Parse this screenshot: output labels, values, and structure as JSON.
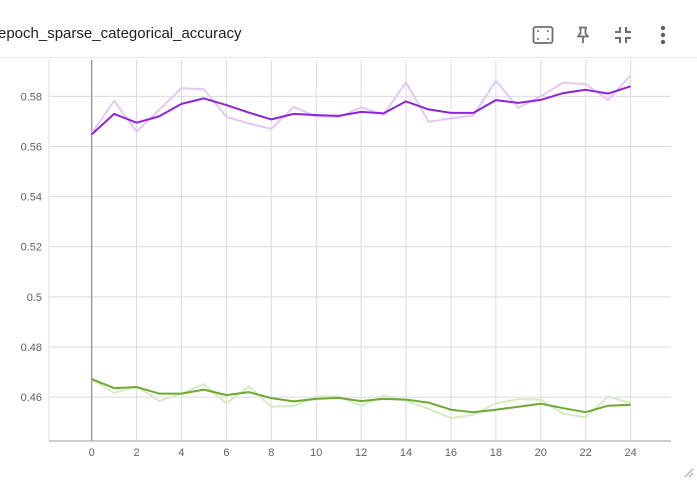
{
  "card": {
    "title": "epoch_sparse_categorical_accuracy"
  },
  "toolbar": {
    "buttons": [
      {
        "name": "fit-domain-icon"
      },
      {
        "name": "pin-icon"
      },
      {
        "name": "collapse-icon"
      },
      {
        "name": "more-vert-icon"
      }
    ]
  },
  "colors": {
    "train": "#8e24d8",
    "train_raw": "#e4c8f4",
    "validation": "#6fa833",
    "validation_raw": "#d6ecc0",
    "grid": "#dcdcdc",
    "axis": "#9e9e9e"
  },
  "chart_data": {
    "type": "line",
    "title": "",
    "xlabel": "",
    "ylabel": "",
    "x_ticks": [
      "0",
      "2",
      "4",
      "6",
      "8",
      "10",
      "12",
      "14",
      "16",
      "18",
      "20",
      "22",
      "24"
    ],
    "y_ticks": [
      "0.46",
      "0.48",
      "0.5",
      "0.52",
      "0.54",
      "0.56",
      "0.58"
    ],
    "xlim": [
      -1.9,
      25.8
    ],
    "ylim": [
      0.4425,
      0.5945
    ],
    "grid": true,
    "x": [
      0,
      1,
      2,
      3,
      4,
      5,
      6,
      7,
      8,
      9,
      10,
      11,
      12,
      13,
      14,
      15,
      16,
      17,
      18,
      19,
      20,
      21,
      22,
      23,
      24
    ],
    "series": [
      {
        "color_key": "train",
        "raw_color_key": "train_raw",
        "values": [
          0.5648,
          0.573,
          0.5695,
          0.572,
          0.577,
          0.5792,
          0.5765,
          0.5735,
          0.5708,
          0.573,
          0.5725,
          0.5722,
          0.5738,
          0.5732,
          0.578,
          0.5748,
          0.5734,
          0.5734,
          0.5785,
          0.5774,
          0.5786,
          0.5813,
          0.5826,
          0.5811,
          0.584
        ],
        "raw_values": [
          0.5652,
          0.5782,
          0.566,
          0.5745,
          0.5833,
          0.5828,
          0.5718,
          0.5692,
          0.567,
          0.5758,
          0.572,
          0.5718,
          0.5756,
          0.5728,
          0.5856,
          0.5698,
          0.5712,
          0.5724,
          0.5862,
          0.5754,
          0.58,
          0.5855,
          0.5849,
          0.5785,
          0.5884
        ]
      },
      {
        "color_key": "validation",
        "raw_color_key": "validation_raw",
        "values": [
          0.4672,
          0.4636,
          0.464,
          0.4614,
          0.4614,
          0.463,
          0.4608,
          0.462,
          0.4596,
          0.4583,
          0.4593,
          0.4597,
          0.4584,
          0.4593,
          0.459,
          0.4578,
          0.455,
          0.454,
          0.455,
          0.4562,
          0.4574,
          0.4556,
          0.454,
          0.4566,
          0.457
        ],
        "raw_values": [
          0.4672,
          0.4616,
          0.4644,
          0.4585,
          0.4614,
          0.4652,
          0.4576,
          0.4643,
          0.4562,
          0.4565,
          0.4603,
          0.4603,
          0.4566,
          0.4606,
          0.4585,
          0.4554,
          0.4516,
          0.453,
          0.4575,
          0.4592,
          0.459,
          0.4534,
          0.452,
          0.4602,
          0.4577
        ]
      }
    ]
  }
}
